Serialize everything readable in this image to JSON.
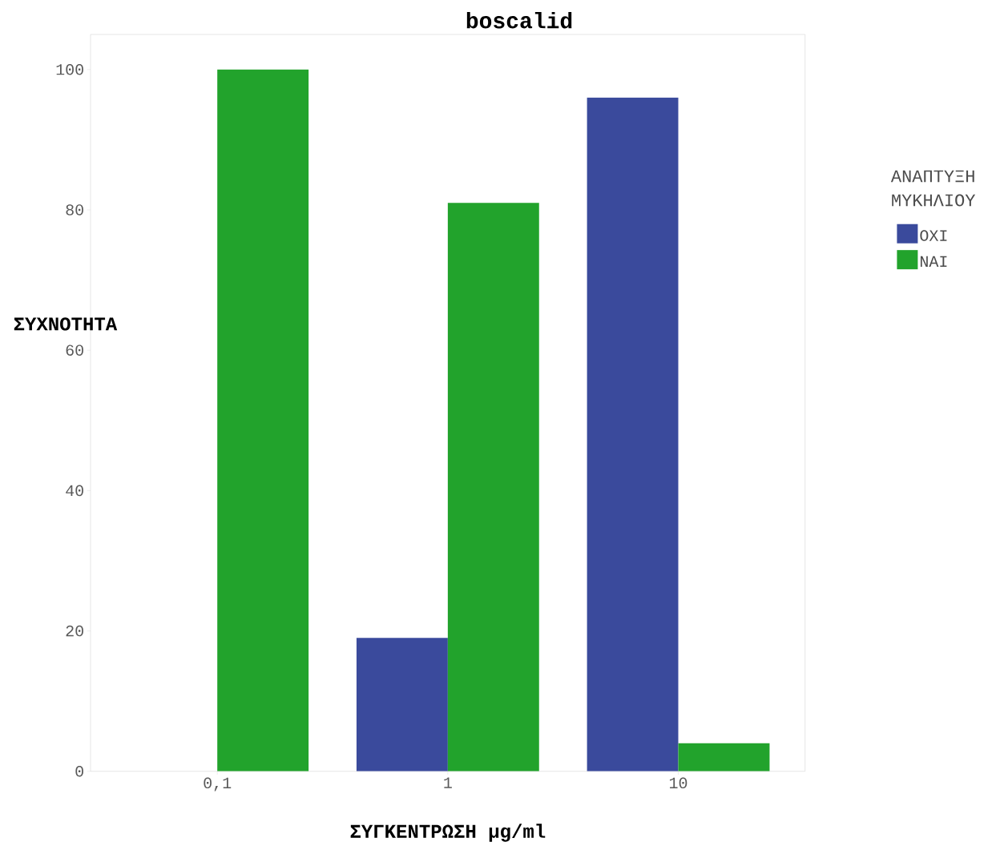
{
  "chart_data": {
    "type": "bar",
    "title": "boscalid",
    "xlabel": "ΣΥΓΚΕΝΤΡΩΣΗ μg/ml",
    "ylabel": "ΣΥΧΝΟΤΗΤΑ",
    "legend_title": "ΑΝΑΠΤΥΞΗ ΜΥΚΗΛΙΟΥ",
    "categories": [
      "0,1",
      "1",
      "10"
    ],
    "series": [
      {
        "name": "ΟΧΙ",
        "color": "#3a4a9c",
        "values": [
          0,
          19,
          96
        ]
      },
      {
        "name": "ΝΑΙ",
        "color": "#22a32c",
        "values": [
          100,
          81,
          4
        ]
      }
    ],
    "ylim": [
      0,
      105
    ],
    "yticks": [
      0,
      20,
      40,
      60,
      80,
      100
    ],
    "grid": false,
    "legend": "right"
  }
}
